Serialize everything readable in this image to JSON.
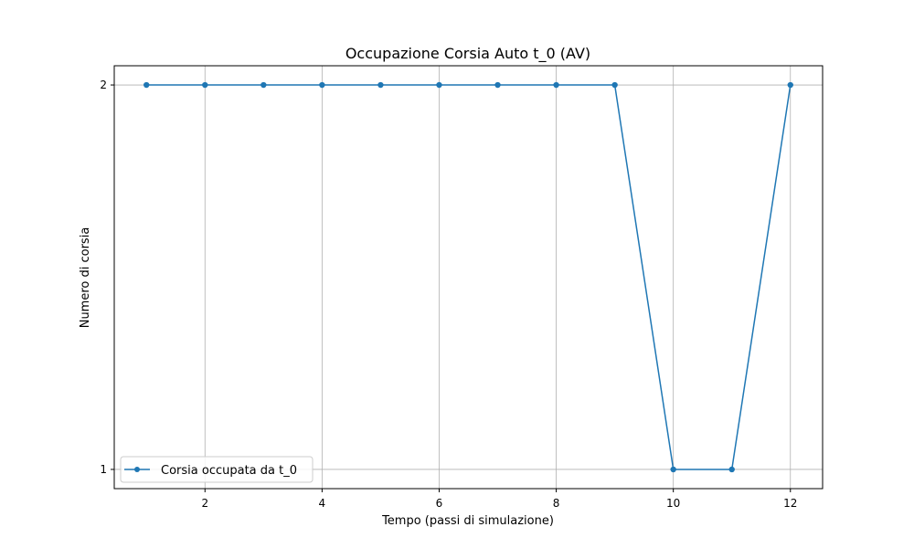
{
  "chart_data": {
    "type": "line",
    "title": "Occupazione Corsia Auto t_0 (AV)",
    "xlabel": "Tempo (passi di simulazione)",
    "ylabel": "Numero di corsia",
    "x": [
      1,
      2,
      3,
      4,
      5,
      6,
      7,
      8,
      9,
      10,
      11,
      12
    ],
    "series": [
      {
        "name": "Corsia occupata da t_0",
        "values": [
          2,
          2,
          2,
          2,
          2,
          2,
          2,
          2,
          2,
          1,
          1,
          2
        ],
        "color": "#1f77b4"
      }
    ],
    "xlim": [
      0.45,
      12.55
    ],
    "ylim": [
      0.95,
      2.05
    ],
    "xticks": [
      2,
      4,
      6,
      8,
      10,
      12
    ],
    "yticks": [
      1,
      2
    ],
    "grid": true,
    "legend_position": "lower-left"
  }
}
